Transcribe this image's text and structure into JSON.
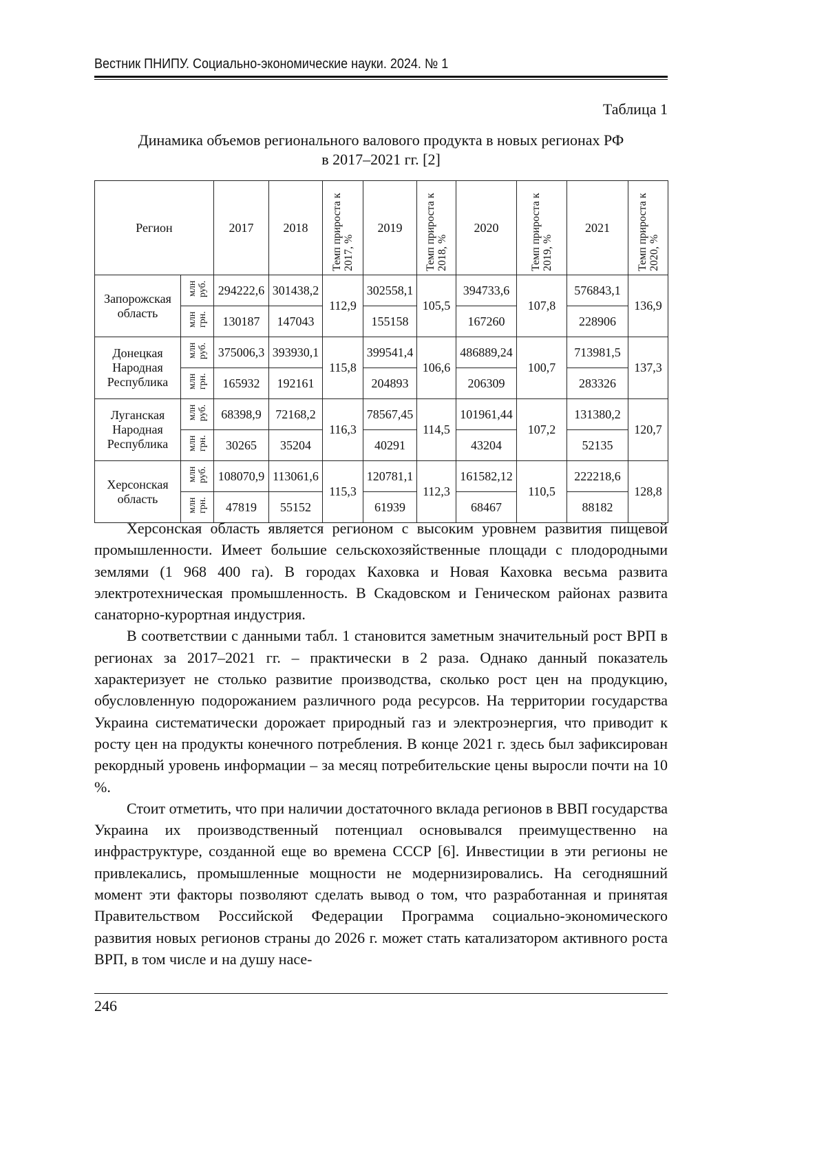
{
  "header": {
    "running_title": "Вестник ПНИПУ. Социально-экономические науки. 2024. № 1"
  },
  "table": {
    "label": "Таблица 1",
    "title_line1": "Динамика объемов регионального валового продукта в новых регионах РФ",
    "title_line2": "в 2017–2021 гг. [2]",
    "headers": [
      "Регион",
      "2017",
      "2018",
      "Темп прироста к 2017, %",
      "2019",
      "Темп прироста к 2018, %",
      "2020",
      "Темп прироста к 2019, %",
      "2021",
      "Темп прироста к 2020, %"
    ],
    "unit_rub": "млн руб.",
    "unit_grn": "млн грн.",
    "rows": [
      {
        "region": "Запорожская область",
        "rub": [
          "294222,6",
          "301438,2",
          "302558,1",
          "394733,6",
          "576843,1"
        ],
        "grn": [
          "130187",
          "147043",
          "155158",
          "167260",
          "228906"
        ],
        "growth": [
          "112,9",
          "105,5",
          "107,8",
          "136,9"
        ]
      },
      {
        "region": "Донецкая Народная Республика",
        "rub": [
          "375006,3",
          "393930,1",
          "399541,4",
          "486889,24",
          "713981,5"
        ],
        "grn": [
          "165932",
          "192161",
          "204893",
          "206309",
          "283326"
        ],
        "growth": [
          "115,8",
          "106,6",
          "100,7",
          "137,3"
        ]
      },
      {
        "region": "Луганская Народная Республика",
        "rub": [
          "68398,9",
          "72168,2",
          "78567,45",
          "101961,44",
          "131380,2"
        ],
        "grn": [
          "30265",
          "35204",
          "40291",
          "43204",
          "52135"
        ],
        "growth": [
          "116,3",
          "114,5",
          "107,2",
          "120,7"
        ]
      },
      {
        "region": "Херсонская область",
        "rub": [
          "108070,9",
          "113061,6",
          "120781,1",
          "161582,12",
          "222218,6"
        ],
        "grn": [
          "47819",
          "55152",
          "61939",
          "68467",
          "88182"
        ],
        "growth": [
          "115,3",
          "112,3",
          "110,5",
          "128,8"
        ]
      }
    ]
  },
  "paragraphs": [
    "Херсонская область является регионом с высоким уровнем развития пищевой промышленности. Имеет большие сельскохозяйственные площади с плодородными землями (1 968 400 га). В городах Каховка и Новая Каховка весьма развита электротехническая промышленность. В Скадовском и Геническом районах развита санаторно-курортная индустрия.",
    "В соответствии с данными табл. 1 становится заметным значительный рост ВРП в регионах за 2017–2021 гг. – практически в 2 раза. Однако данный показатель характеризует не столько развитие производства, сколько рост цен на продукцию, обусловленную подорожанием различного рода ресурсов. На территории государства Украина систематически дорожает природный газ и электроэнергия, что приводит к росту цен на продукты конечного потребления. В конце 2021 г. здесь был зафиксирован рекордный уровень информации – за месяц потребительские цены выросли почти на 10 %.",
    "Стоит отметить, что при наличии достаточного вклада регионов в ВВП государства Украина их производственный потенциал основывался преимущественно на инфраструктуре, созданной еще во времена СССР [6]. Инвестиции в эти регионы не привлекались, промышленные мощности не модернизировались. На сегодняшний момент эти факторы позволяют сделать вывод о том, что разработанная и принятая Правительством Российской Федерации Программа социально-экономического развития новых регионов страны до 2026 г. может стать катализатором активного роста ВРП, в том числе и на душу насе-"
  ],
  "footer": {
    "page_number": "246"
  }
}
